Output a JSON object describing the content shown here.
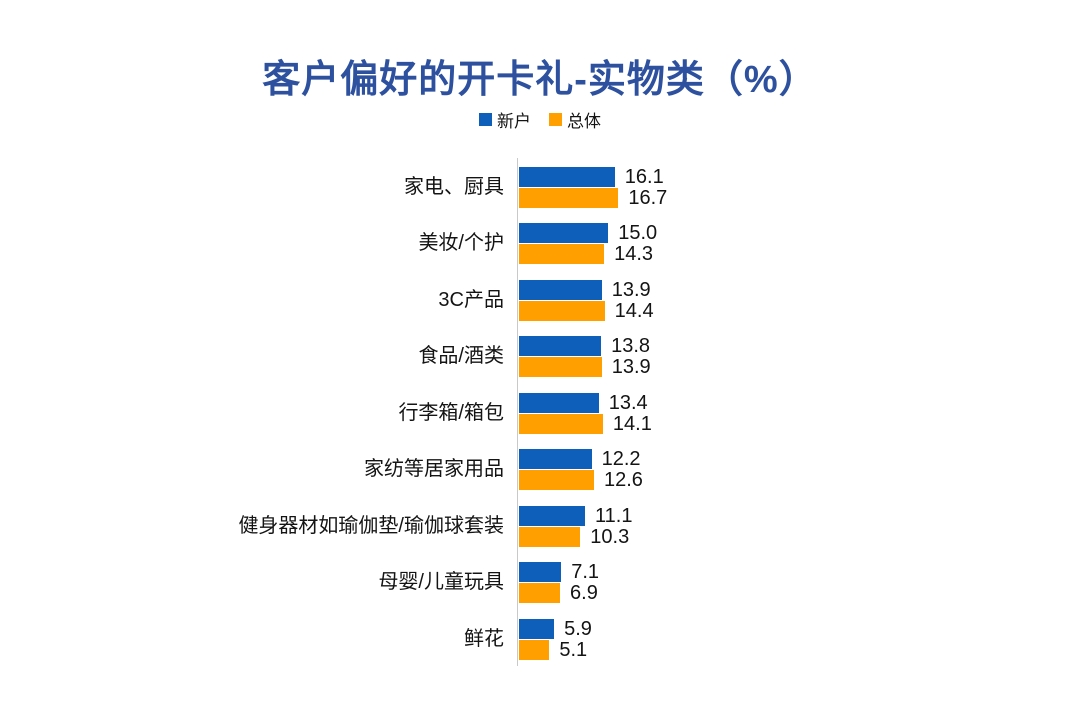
{
  "chart": {
    "title": "客户偏好的开卡礼-实物类（%）",
    "legend": [
      "新户",
      "总体"
    ],
    "colors": {
      "series_new": "#0e5fba",
      "series_overall": "#ff9f00",
      "title": "#2d519e",
      "axis_line": "#c9c9c9",
      "text": "#141414"
    }
  },
  "chart_data": {
    "type": "bar",
    "orientation": "horizontal",
    "title": "客户偏好的开卡礼-实物类（%）",
    "legend_position": "top-center",
    "grid": false,
    "value_labels": true,
    "xlim": [
      0,
      17
    ],
    "categories": [
      "家电、厨具",
      "美妆/个护",
      "3C产品",
      "食品/酒类",
      "行李箱/箱包",
      "家纺等居家用品",
      "健身器材如瑜伽垫/瑜伽球套装",
      "母婴/儿童玩具",
      "鲜花"
    ],
    "series": [
      {
        "name": "新户",
        "color": "#0e5fba",
        "values": [
          16.1,
          15.0,
          13.9,
          13.8,
          13.4,
          12.2,
          11.1,
          7.1,
          5.9
        ]
      },
      {
        "name": "总体",
        "color": "#ff9f00",
        "values": [
          16.7,
          14.3,
          14.4,
          13.9,
          14.1,
          12.6,
          10.3,
          6.9,
          5.1
        ]
      }
    ]
  }
}
